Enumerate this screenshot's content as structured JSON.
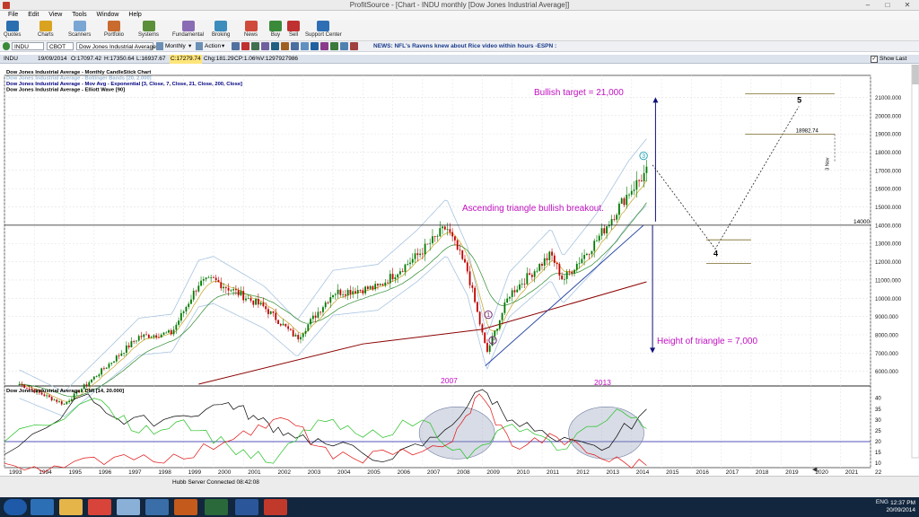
{
  "window": {
    "title": "ProfitSource - [Chart - INDU monthly [Dow Jones Industrial Average]]"
  },
  "menu": [
    "File",
    "Edit",
    "View",
    "Tools",
    "Window",
    "Help"
  ],
  "toolbar": [
    {
      "label": "Quotes",
      "color": "#2a6fb0"
    },
    {
      "label": "Charts",
      "color": "#d9a320"
    },
    {
      "label": "Scanners",
      "color": "#7aa6d4"
    },
    {
      "label": "Portfolio",
      "color": "#c96b2e"
    },
    {
      "label": "Systems",
      "color": "#5b8f3a"
    },
    {
      "label": "Fundamental",
      "color": "#8a6cb4"
    },
    {
      "label": "Broking",
      "color": "#3c8dbc"
    },
    {
      "label": "News",
      "color": "#d04a3c"
    },
    {
      "label": "Buy",
      "color": "#3a8a3a"
    },
    {
      "label": "Sell",
      "color": "#c03030"
    },
    {
      "label": "Support Center",
      "color": "#2f6eb5"
    }
  ],
  "symbol_bar": {
    "symbol": "INDU",
    "exchange": "CBOT",
    "name": "Dow Jones Industrial Average",
    "period": "Monthly",
    "action": "Action",
    "news_ticker": "NEWS: NFL's Ravens knew about Rice video within hours -ESPN :"
  },
  "info_bar": {
    "symbol": "INDU",
    "date": "19/09/2014",
    "open": "O:17097.42",
    "high": "H:17350.64",
    "low": "L:16937.67",
    "close": "C:17279.74",
    "change": "Chg:181.29",
    "change_pct": "CP:1.06%",
    "volume": "V:1297927986",
    "show_last": "Show Last"
  },
  "main_legend": [
    {
      "text": "Dow Jones Industrial Average - Monthly CandleStick Chart",
      "color": "#000000"
    },
    {
      "text": "Dow Jones Industrial Average - Bollinger Bands [20, 2.000]",
      "color": "#9ab9d8"
    },
    {
      "text": "Dow Jones Industrial Average - Mov Avg - Exponential [3, Close, 7, Close, 21, Close, 200, Close]",
      "color": "#000080"
    },
    {
      "text": "Dow Jones Industrial Average - Elliott Wave [90]",
      "color": "#000000"
    }
  ],
  "annotations": {
    "bullish_target": "Bullish target = 21,000",
    "breakout": "Ascending triangle bullish breakout.",
    "height": "Height of triangle = 7,000",
    "year_2007": "2007",
    "year_2013": "2013",
    "level_14000": "14000",
    "level_18982": "18982.74",
    "nov_label": "3 Nov",
    "wave_1": "1",
    "wave_2": "2",
    "wave_3": "3",
    "wave_4": "4",
    "wave_5": "5"
  },
  "price_axis": [
    "21000.000",
    "20000.000",
    "19000.000",
    "18000.000",
    "17000.000",
    "16000.000",
    "15000.000",
    "14000.000",
    "13000.000",
    "12000.000",
    "11000.000",
    "10000.000",
    "9000.000",
    "8000.000",
    "7000.000",
    "6000.000"
  ],
  "dmi": {
    "title": "Dow Jones Industrial Average - DMI [14, 20.000]",
    "axis": [
      "40",
      "35",
      "30",
      "25",
      "20",
      "15",
      "10"
    ],
    "threshold": 20
  },
  "years": [
    "1993",
    "1994",
    "1995",
    "1996",
    "1997",
    "1998",
    "1999",
    "2000",
    "2001",
    "2002",
    "2003",
    "2004",
    "2005",
    "2006",
    "2007",
    "2008",
    "2009",
    "2010",
    "2011",
    "2012",
    "2013",
    "2014",
    "2015",
    "2016",
    "2017",
    "2018",
    "2019",
    "2020",
    "2021",
    "22"
  ],
  "status": {
    "connection": "Hubb Server Connected 08:42:08"
  },
  "taskbar": {
    "lang": "ENG",
    "time": "12:37 PM",
    "date": "20/09/2014"
  },
  "chart_data": {
    "type": "candlestick",
    "title": "Dow Jones Industrial Average - Monthly CandleStick Chart",
    "x_range": [
      1993,
      2022
    ],
    "y_range": [
      5200,
      22200
    ],
    "anchor_points": [
      {
        "x": 1993.5,
        "y": 5300
      },
      {
        "x": 1995.0,
        "y": 4200
      },
      {
        "x": 1996.5,
        "y": 6400
      },
      {
        "x": 1997.5,
        "y": 7900
      },
      {
        "x": 1998.6,
        "y": 8100
      },
      {
        "x": 1999.5,
        "y": 10800
      },
      {
        "x": 2000.0,
        "y": 11000
      },
      {
        "x": 2001.7,
        "y": 9500
      },
      {
        "x": 2002.8,
        "y": 7800
      },
      {
        "x": 2004.0,
        "y": 10300
      },
      {
        "x": 2005.5,
        "y": 10600
      },
      {
        "x": 2006.8,
        "y": 12300
      },
      {
        "x": 2007.8,
        "y": 13900
      },
      {
        "x": 2008.5,
        "y": 11500
      },
      {
        "x": 2009.15,
        "y": 7000
      },
      {
        "x": 2009.9,
        "y": 10200
      },
      {
        "x": 2011.3,
        "y": 12400
      },
      {
        "x": 2011.7,
        "y": 11000
      },
      {
        "x": 2012.8,
        "y": 13100
      },
      {
        "x": 2013.9,
        "y": 15800
      },
      {
        "x": 2014.7,
        "y": 17280
      }
    ],
    "ema200": [
      {
        "x": 1999.5,
        "y": 5300
      },
      {
        "x": 2005,
        "y": 7500
      },
      {
        "x": 2009,
        "y": 8300
      },
      {
        "x": 2014.5,
        "y": 10900
      }
    ],
    "bollinger_upper_offset": 1500,
    "bollinger_lower_offset": 1500,
    "resistance_level": 14000,
    "triangle_support": [
      {
        "x": 2009.1,
        "y": 6300
      },
      {
        "x": 2014.4,
        "y": 14000
      }
    ],
    "target_arrow": {
      "x": 2014.8,
      "from": 14200,
      "to": 21000
    },
    "height_arrow": {
      "x": 2014.7,
      "from": 14000,
      "to": 7000
    },
    "projection": [
      {
        "x": 2014.7,
        "y": 17300
      },
      {
        "x": 2016.8,
        "y": 12700
      },
      {
        "x": 2019.6,
        "y": 20500
      }
    ],
    "box_levels": [
      {
        "x1": 2016.5,
        "x2": 2018.0,
        "y": 13200
      },
      {
        "x1": 2016.5,
        "x2": 2018.0,
        "y": 11900
      },
      {
        "x1": 2017.8,
        "x2": 2020.8,
        "y": 18982
      }
    ],
    "dmi_series": {
      "adx": [
        {
          "x": 1993,
          "y": 14
        },
        {
          "x": 1995.8,
          "y": 42
        },
        {
          "x": 1997,
          "y": 28
        },
        {
          "x": 1999,
          "y": 32
        },
        {
          "x": 2000.5,
          "y": 38
        },
        {
          "x": 2001.5,
          "y": 30
        },
        {
          "x": 2002.5,
          "y": 24
        },
        {
          "x": 2004,
          "y": 18
        },
        {
          "x": 2006,
          "y": 12
        },
        {
          "x": 2007.5,
          "y": 22
        },
        {
          "x": 2009,
          "y": 44
        },
        {
          "x": 2010,
          "y": 30
        },
        {
          "x": 2011.5,
          "y": 20
        },
        {
          "x": 2013,
          "y": 16
        },
        {
          "x": 2014.5,
          "y": 35
        }
      ],
      "plus_di": [
        {
          "x": 1993,
          "y": 20
        },
        {
          "x": 1996,
          "y": 40
        },
        {
          "x": 1997.5,
          "y": 24
        },
        {
          "x": 1999,
          "y": 30
        },
        {
          "x": 2000.5,
          "y": 18
        },
        {
          "x": 2002,
          "y": 10
        },
        {
          "x": 2003.5,
          "y": 30
        },
        {
          "x": 2005,
          "y": 22
        },
        {
          "x": 2007,
          "y": 30
        },
        {
          "x": 2008.5,
          "y": 12
        },
        {
          "x": 2010,
          "y": 28
        },
        {
          "x": 2011.5,
          "y": 16
        },
        {
          "x": 2013.5,
          "y": 35
        },
        {
          "x": 2014.5,
          "y": 26
        }
      ],
      "minus_di": [
        {
          "x": 1993,
          "y": 10
        },
        {
          "x": 1995,
          "y": 8
        },
        {
          "x": 1997,
          "y": 14
        },
        {
          "x": 1999,
          "y": 12
        },
        {
          "x": 2001,
          "y": 25
        },
        {
          "x": 2002.5,
          "y": 30
        },
        {
          "x": 2004,
          "y": 12
        },
        {
          "x": 2006,
          "y": 14
        },
        {
          "x": 2008,
          "y": 20
        },
        {
          "x": 2008.9,
          "y": 42
        },
        {
          "x": 2010,
          "y": 18
        },
        {
          "x": 2011.5,
          "y": 22
        },
        {
          "x": 2013,
          "y": 12
        },
        {
          "x": 2014.5,
          "y": 9
        }
      ]
    },
    "highlight_ellipses": [
      {
        "x": 2008.0,
        "y": 24
      },
      {
        "x": 2013.0,
        "y": 24
      }
    ]
  }
}
